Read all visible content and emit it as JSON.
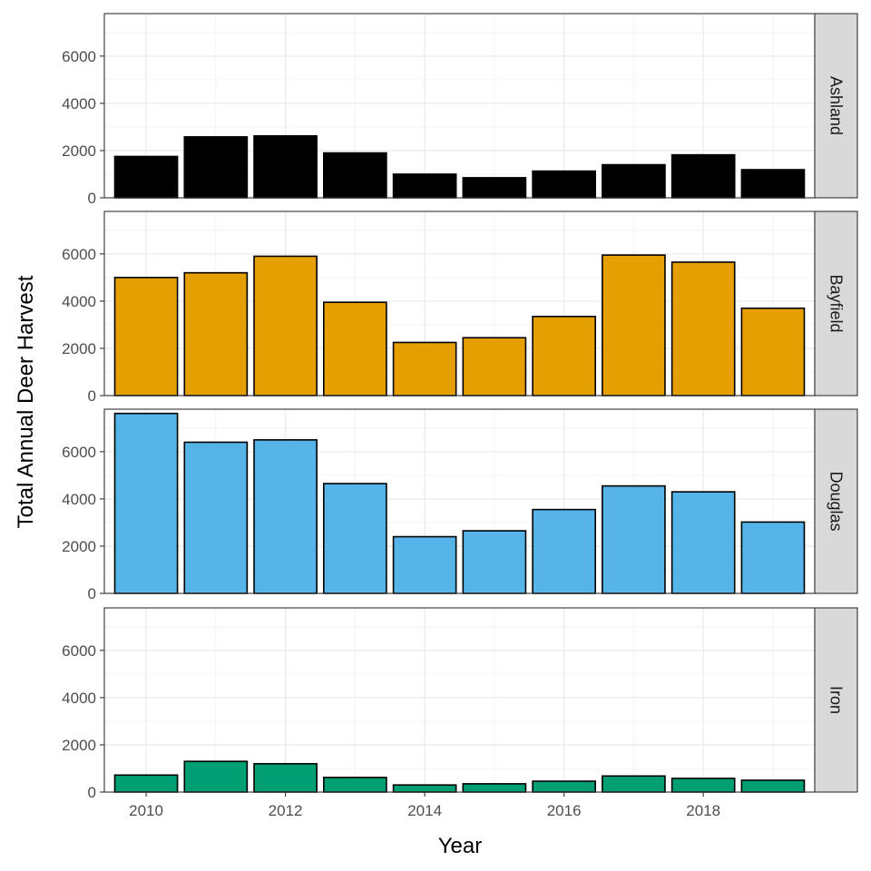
{
  "chart_data": {
    "type": "bar",
    "facet": "rows",
    "xlabel": "Year",
    "ylabel": "Total Annual Deer Harvest",
    "x": [
      2010,
      2011,
      2012,
      2013,
      2014,
      2015,
      2016,
      2017,
      2018,
      2019
    ],
    "x_ticks": [
      "2010",
      "2012",
      "2014",
      "2016",
      "2018"
    ],
    "x_tick_values": [
      2010,
      2012,
      2014,
      2016,
      2018
    ],
    "ylim": [
      0,
      7800
    ],
    "y_ticks": [
      "0",
      "2000",
      "4000",
      "6000"
    ],
    "y_tick_values": [
      0,
      2000,
      4000,
      6000
    ],
    "grid": true,
    "legend": "none",
    "panels": [
      {
        "name": "Ashland",
        "color": "#000000",
        "values": [
          1750,
          2580,
          2620,
          1900,
          1000,
          850,
          1130,
          1400,
          1820,
          1190
        ]
      },
      {
        "name": "Bayfield",
        "color": "#E69F00",
        "values": [
          5000,
          5200,
          5900,
          3950,
          2250,
          2450,
          3350,
          5950,
          5650,
          3700
        ]
      },
      {
        "name": "Douglas",
        "color": "#56B4E9",
        "values": [
          7620,
          6400,
          6500,
          4650,
          2400,
          2650,
          3550,
          4550,
          4300,
          3020
        ]
      },
      {
        "name": "Iron",
        "color": "#009E73",
        "values": [
          720,
          1300,
          1200,
          620,
          300,
          350,
          460,
          680,
          580,
          500
        ]
      }
    ]
  }
}
